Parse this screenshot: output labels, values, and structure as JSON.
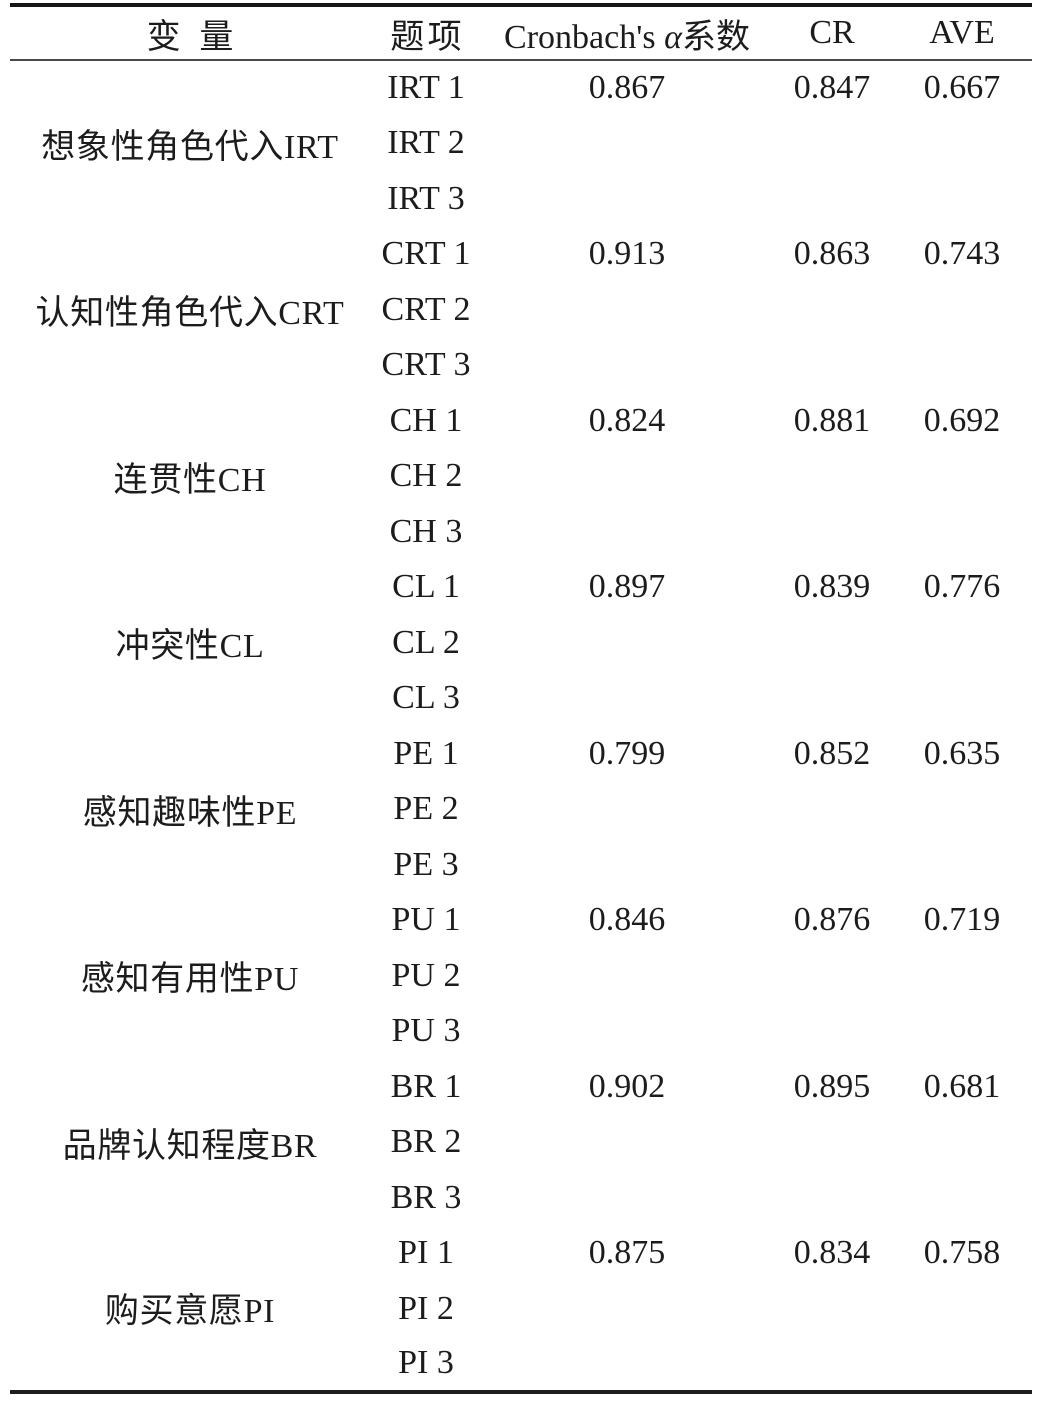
{
  "page": {
    "background": "#ffffff",
    "ink": "#1c1c1c",
    "rule_heavy": "#161616",
    "rule_light": "#4a4a4a"
  },
  "table": {
    "headers": {
      "variable": "变量",
      "item": "题项",
      "cronbach_parts": [
        "Cronbach's ",
        "α",
        "系数"
      ],
      "cr": "CR",
      "ave": "AVE"
    },
    "groups": [
      {
        "variable": "想象性角色代入IRT",
        "items": [
          "IRT 1",
          "IRT 2",
          "IRT 3"
        ],
        "cronbach": "0.867",
        "cr": "0.847",
        "ave": "0.667"
      },
      {
        "variable": "认知性角色代入CRT",
        "items": [
          "CRT 1",
          "CRT 2",
          "CRT 3"
        ],
        "cronbach": "0.913",
        "cr": "0.863",
        "ave": "0.743"
      },
      {
        "variable": "连贯性CH",
        "items": [
          "CH 1",
          "CH 2",
          "CH 3"
        ],
        "cronbach": "0.824",
        "cr": "0.881",
        "ave": "0.692"
      },
      {
        "variable": "冲突性CL",
        "items": [
          "CL 1",
          "CL 2",
          "CL 3"
        ],
        "cronbach": "0.897",
        "cr": "0.839",
        "ave": "0.776"
      },
      {
        "variable": "感知趣味性PE",
        "items": [
          "PE 1",
          "PE 2",
          "PE 3"
        ],
        "cronbach": "0.799",
        "cr": "0.852",
        "ave": "0.635"
      },
      {
        "variable": "感知有用性PU",
        "items": [
          "PU 1",
          "PU 2",
          "PU 3"
        ],
        "cronbach": "0.846",
        "cr": "0.876",
        "ave": "0.719"
      },
      {
        "variable": "品牌认知程度BR",
        "items": [
          "BR 1",
          "BR 2",
          "BR 3"
        ],
        "cronbach": "0.902",
        "cr": "0.895",
        "ave": "0.681"
      },
      {
        "variable": "购买意愿PI",
        "items": [
          "PI 1",
          "PI 2",
          "PI 3"
        ],
        "cronbach": "0.875",
        "cr": "0.834",
        "ave": "0.758"
      }
    ]
  }
}
